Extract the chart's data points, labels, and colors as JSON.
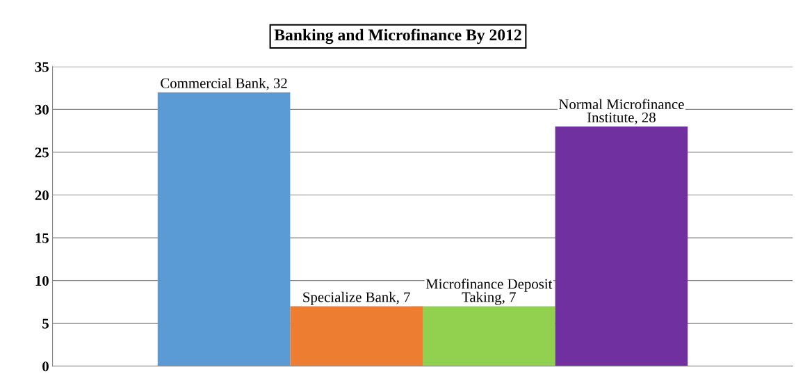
{
  "chart_data": {
    "type": "bar",
    "title": "Banking and Microfinance By 2012",
    "categories": [
      null
    ],
    "series": [
      {
        "color": "#5b9bd5",
        "values": [
          32
        ],
        "value_labels": [
          "Commercial Bank, 32"
        ]
      },
      {
        "color": "#ed7d31",
        "values": [
          7
        ],
        "value_labels": [
          "Specialize Bank, 7"
        ]
      },
      {
        "color": "#92d050",
        "values": [
          7
        ],
        "value_labels": [
          "Microfinance Deposit Taking, 7"
        ]
      },
      {
        "color": "#7030a0",
        "values": [
          28
        ],
        "value_labels": [
          "Normal Microfinance Institute, 28"
        ]
      }
    ],
    "ylim": [
      0,
      35
    ],
    "yticks": [
      0,
      5,
      10,
      15,
      20,
      25,
      30,
      35
    ],
    "grid": "y"
  }
}
